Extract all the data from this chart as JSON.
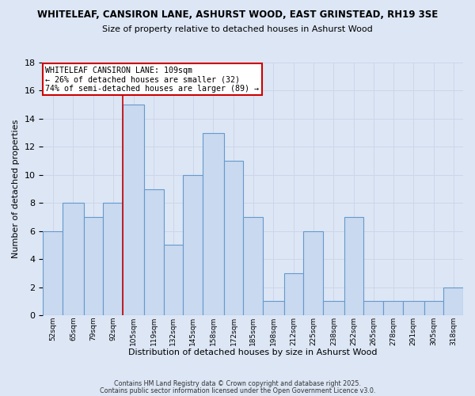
{
  "title1": "WHITELEAF, CANSIRON LANE, ASHURST WOOD, EAST GRINSTEAD, RH19 3SE",
  "title2": "Size of property relative to detached houses in Ashurst Wood",
  "xlabel": "Distribution of detached houses by size in Ashurst Wood",
  "ylabel": "Number of detached properties",
  "bar_labels": [
    "52sqm",
    "65sqm",
    "79sqm",
    "92sqm",
    "105sqm",
    "119sqm",
    "132sqm",
    "145sqm",
    "158sqm",
    "172sqm",
    "185sqm",
    "198sqm",
    "212sqm",
    "225sqm",
    "238sqm",
    "252sqm",
    "265sqm",
    "278sqm",
    "291sqm",
    "305sqm",
    "318sqm"
  ],
  "bar_values": [
    6,
    8,
    7,
    8,
    15,
    9,
    5,
    10,
    13,
    11,
    7,
    1,
    3,
    6,
    1,
    7,
    1,
    1,
    1,
    1,
    2
  ],
  "bin_edges": [
    52,
    65,
    79,
    92,
    105,
    119,
    132,
    145,
    158,
    172,
    185,
    198,
    212,
    225,
    238,
    252,
    265,
    278,
    291,
    305,
    318
  ],
  "bar_fill_color": "#c8d9f0",
  "bar_edge_color": "#6699cc",
  "vline_xpos_in_bins": 105,
  "vline_color": "#cc0000",
  "annotation_line1": "WHITELEAF CANSIRON LANE: 109sqm",
  "annotation_line2": "← 26% of detached houses are smaller (32)",
  "annotation_line3": "74% of semi-detached houses are larger (89) →",
  "annotation_box_color": "#ffffff",
  "annotation_box_edge": "#cc0000",
  "grid_color": "#ccd6e8",
  "background_color": "#dce6f5",
  "footer1": "Contains HM Land Registry data © Crown copyright and database right 2025.",
  "footer2": "Contains public sector information licensed under the Open Government Licence v3.0.",
  "ylim": [
    0,
    18
  ],
  "yticks": [
    0,
    2,
    4,
    6,
    8,
    10,
    12,
    14,
    16,
    18
  ]
}
